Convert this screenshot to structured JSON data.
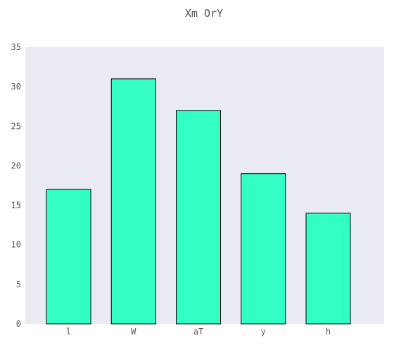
{
  "chart_data": {
    "type": "bar",
    "title": "Xm OrY",
    "xlabel": "",
    "ylabel": "",
    "categories": [
      "l",
      "W",
      "aT",
      "y",
      "h"
    ],
    "values": [
      17,
      31,
      27,
      19,
      14
    ],
    "ylim": [
      0,
      35
    ],
    "yticks": [
      0,
      5,
      10,
      15,
      20,
      25,
      30,
      35
    ],
    "grid": false,
    "legend": "none",
    "colors": {
      "bar_fill": "#33ffc4",
      "bar_stroke": "#000000",
      "plot_background": "#eaeaf2",
      "text": "#555555"
    }
  }
}
